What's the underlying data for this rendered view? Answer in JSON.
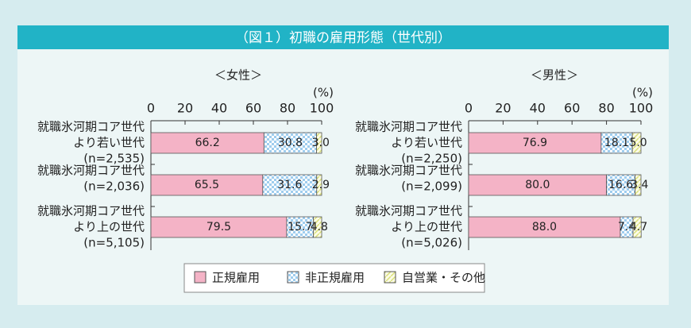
{
  "title": "（図１）初職の雇用形態（世代別）",
  "chart_data": [
    {
      "type": "bar",
      "subtitle": "＜女性＞",
      "unit": "(%)",
      "categories": [
        [
          "就職氷河期コア世代",
          "より若い世代",
          "(n=2,535)"
        ],
        [
          "就職氷河期コア世代",
          "(n=2,036)"
        ],
        [
          "就職氷河期コア世代",
          "より上の世代",
          "(n=5,105)"
        ]
      ],
      "series": [
        {
          "name": "正規雇用",
          "color": "#f4b3c6",
          "values": [
            66.2,
            65.5,
            79.5
          ],
          "value_labels": [
            "66.2",
            "65.5",
            "79.5"
          ]
        },
        {
          "name": "非正規雇用",
          "color": "#9fcdee",
          "values": [
            30.8,
            31.6,
            15.7
          ],
          "value_labels": [
            "30.8",
            "31.6",
            "15.7"
          ]
        },
        {
          "name": "自営業・その他",
          "color": "#d9df7a",
          "values": [
            3,
            2.9,
            4.8
          ],
          "value_labels": [
            "3.0",
            "2.9",
            "4.8"
          ]
        }
      ],
      "xlim": [
        0,
        100
      ],
      "xticks": [
        0,
        20,
        40,
        60,
        80,
        100
      ]
    },
    {
      "type": "bar",
      "subtitle": "＜男性＞",
      "unit": "(%)",
      "categories": [
        [
          "就職氷河期コア世代",
          "より若い世代",
          "(n=2,250)"
        ],
        [
          "就職氷河期コア世代",
          "(n=2,099)"
        ],
        [
          "就職氷河期コア世代",
          "より上の世代",
          "(n=5,026)"
        ]
      ],
      "series": [
        {
          "color": "#f4b3c6",
          "values": [
            76.9,
            80,
            88
          ],
          "value_labels": [
            "76.9",
            "80.0",
            "88.0"
          ]
        },
        {
          "color": "#9fcdee",
          "values": [
            18.1,
            16.6,
            7.4
          ],
          "value_labels": [
            "18.1",
            "16.6",
            "7.4"
          ]
        },
        {
          "color": "#d9df7a",
          "values": [
            5,
            3.4,
            4.7
          ],
          "value_labels": [
            "5.0",
            "3.4",
            "4.7"
          ]
        }
      ],
      "xlim": [
        0,
        100
      ],
      "xticks": [
        0,
        20,
        40,
        60,
        80,
        100
      ]
    }
  ]
}
